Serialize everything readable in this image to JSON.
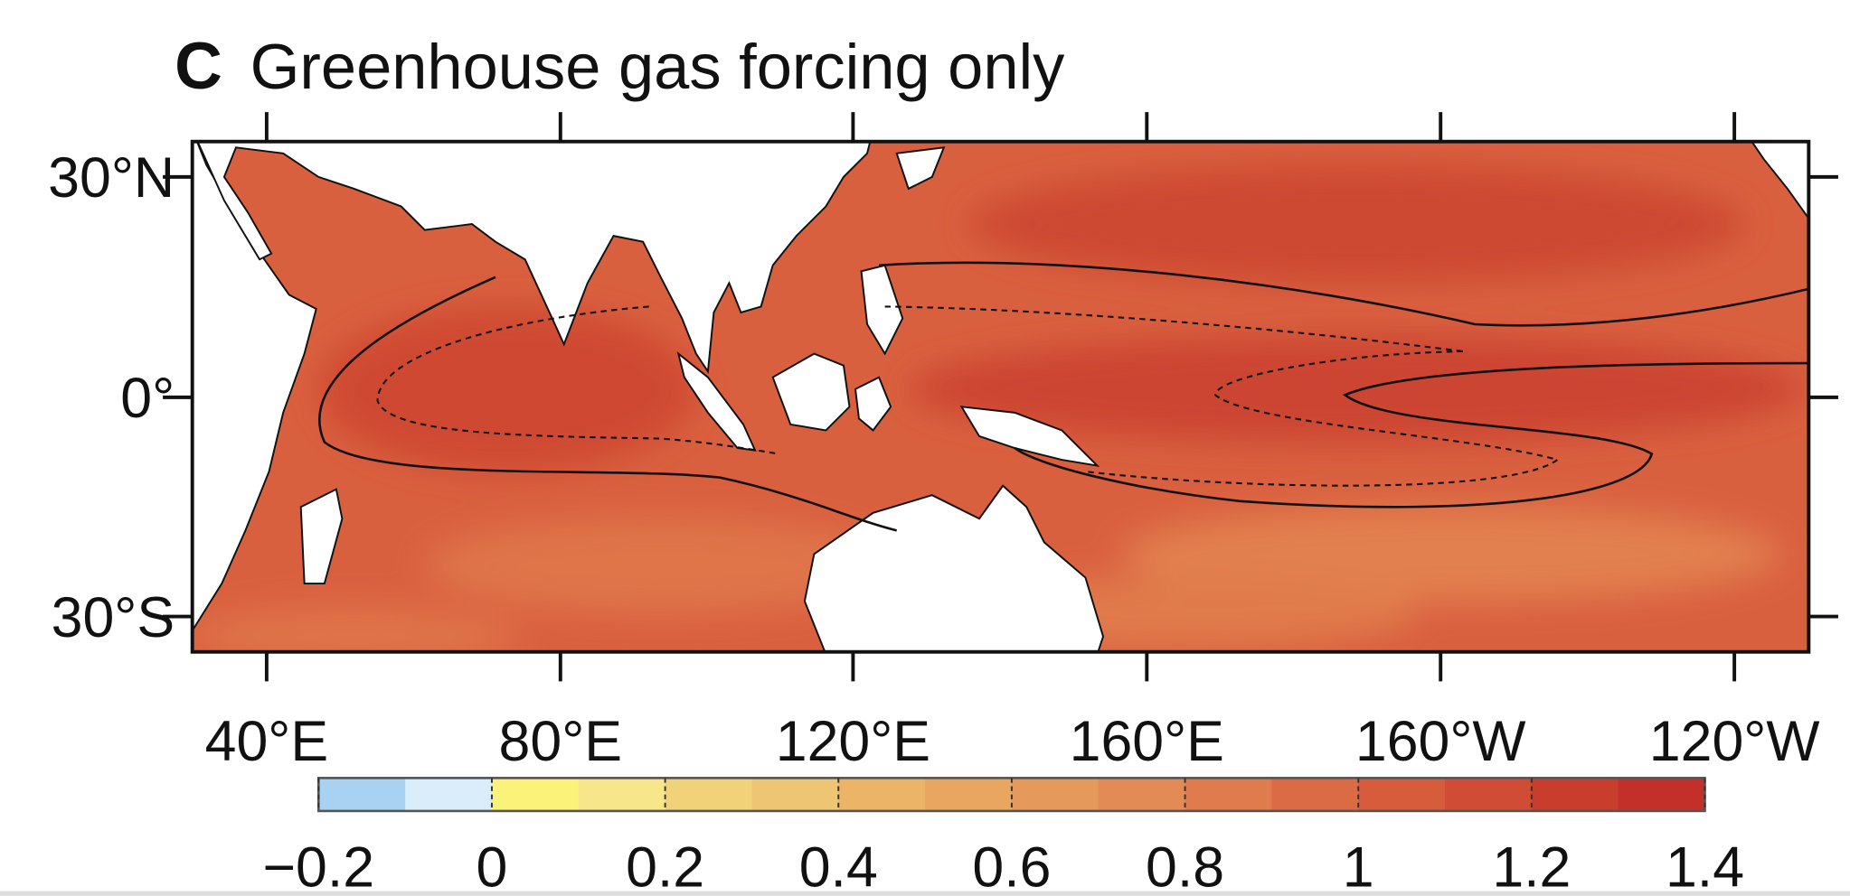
{
  "panel": {
    "label": "C",
    "title": "Greenhouse gas forcing only"
  },
  "map": {
    "lat_labels": [
      "30°N",
      "0°",
      "30°S"
    ],
    "lon_labels": [
      "40°E",
      "80°E",
      "120°E",
      "160°E",
      "160°W",
      "120°W"
    ]
  },
  "colorbar": {
    "colors": [
      "#a9d1f1",
      "#d9edfb",
      "#fbf27a",
      "#f7e68a",
      "#f2d279",
      "#eec572",
      "#ebb467",
      "#e8a661",
      "#e5995b",
      "#e28b55",
      "#df7b4d",
      "#db6b45",
      "#d65c3c",
      "#d14c35",
      "#c93d2d",
      "#c3302a"
    ],
    "ticks": [
      {
        "value": -0.2,
        "label": "−0.2"
      },
      0,
      0.2,
      0.4,
      0.6,
      0.8,
      1,
      1.2,
      1.4
    ]
  }
}
